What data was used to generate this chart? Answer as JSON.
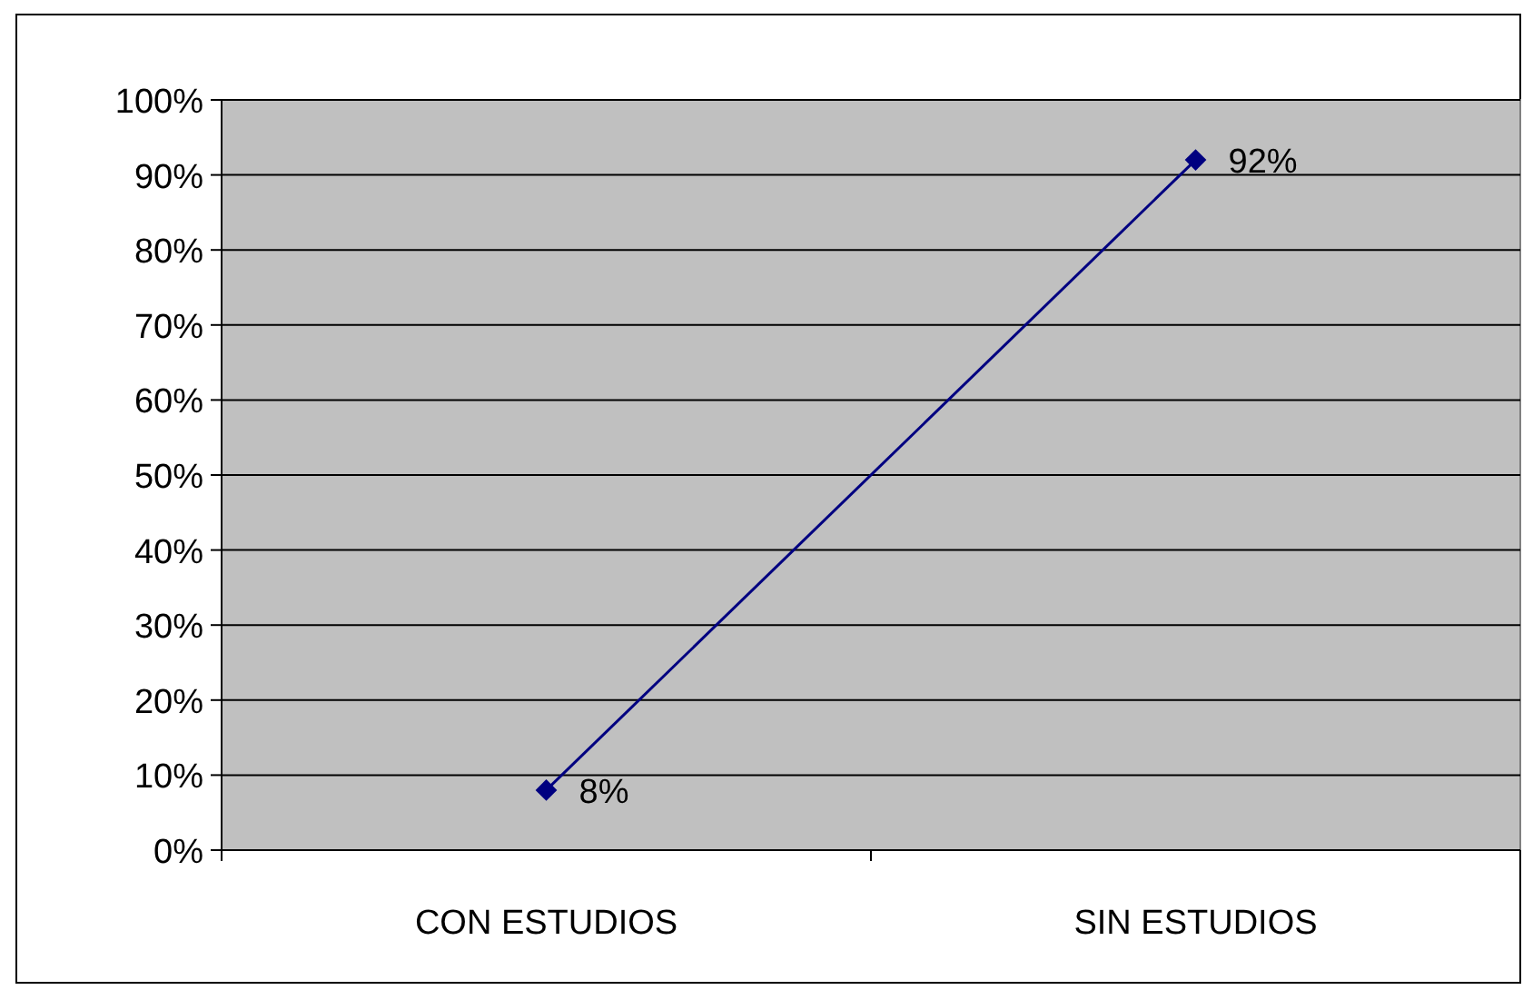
{
  "chart_data": {
    "type": "line",
    "categories": [
      "CON ESTUDIOS",
      "SIN ESTUDIOS"
    ],
    "series": [
      {
        "color": "#000080",
        "values": [
          8,
          92
        ],
        "value_labels": [
          "8%",
          "92%"
        ]
      }
    ],
    "ylim": [
      0,
      100
    ],
    "yticks": [
      {
        "value": 0,
        "label": "0%"
      },
      {
        "value": 10,
        "label": "10%"
      },
      {
        "value": 20,
        "label": "20%"
      },
      {
        "value": 30,
        "label": "30%"
      },
      {
        "value": 40,
        "label": "40%"
      },
      {
        "value": 50,
        "label": "50%"
      },
      {
        "value": 60,
        "label": "60%"
      },
      {
        "value": 70,
        "label": "70%"
      },
      {
        "value": 80,
        "label": "80%"
      },
      {
        "value": 90,
        "label": "90%"
      },
      {
        "value": 100,
        "label": "100%"
      }
    ],
    "grid": "y",
    "marker": "diamond",
    "line_style": "solid"
  }
}
